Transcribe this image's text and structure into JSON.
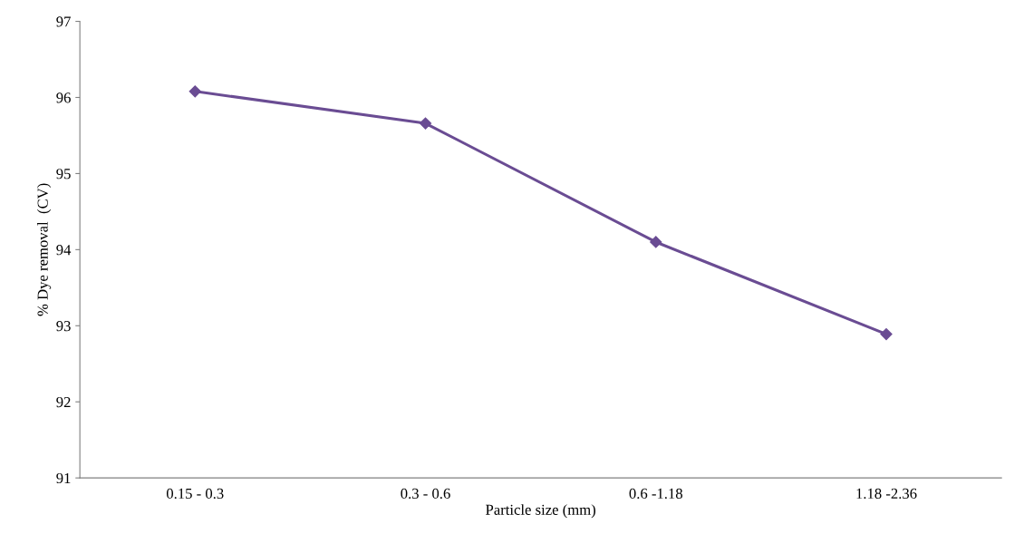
{
  "chart_data": {
    "type": "line",
    "xlabel": "Particle size (mm)",
    "ylabel": "% Dye removal  (CV)",
    "categories": [
      "0.15 - 0.3",
      "0.3 - 0.6",
      "0.6 -1.18",
      "1.18 -2.36"
    ],
    "series": [
      {
        "color": "#6a4c93",
        "values": [
          96.08,
          95.66,
          94.1,
          92.89
        ]
      }
    ],
    "ylim": [
      91,
      97
    ],
    "yticks": [
      91,
      92,
      93,
      94,
      95,
      96,
      97
    ],
    "marker": "diamond",
    "line_style": "solid",
    "grid": false,
    "legend": false
  }
}
